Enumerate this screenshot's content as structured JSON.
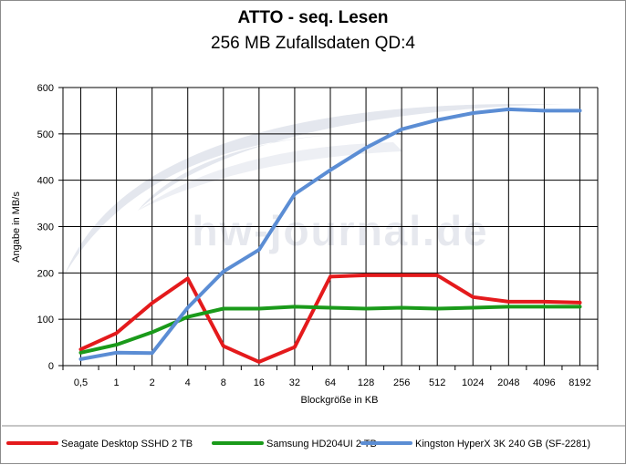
{
  "colors": {
    "series_red": "#e41a1c",
    "series_green": "#1a9a1a",
    "series_blue": "#5b8dd4",
    "grid": "#000000",
    "watermark": "#e4e7ee"
  },
  "watermark": {
    "text": "hw-journal.de"
  },
  "chart_data": {
    "type": "line",
    "title": "ATTO - seq. Lesen",
    "subtitle": "256 MB Zufallsdaten QD:4",
    "xlabel": "Blockgröße in KB",
    "ylabel": "Angabe in MB/s",
    "categories": [
      "0,5",
      "1",
      "2",
      "4",
      "8",
      "16",
      "32",
      "64",
      "128",
      "256",
      "512",
      "1024",
      "2048",
      "4096",
      "8192"
    ],
    "ylim": [
      0,
      600
    ],
    "yticks": [
      "0",
      "100",
      "200",
      "300",
      "400",
      "500",
      "600"
    ],
    "grid": "horizontal and vertical",
    "legend_position": "bottom",
    "series": [
      {
        "name": "Seagate Desktop SSHD 2 TB",
        "values": [
          35,
          70,
          135,
          188,
          42,
          8,
          40,
          192,
          195,
          195,
          195,
          148,
          138,
          138,
          136
        ]
      },
      {
        "name": "Samsung HD204UI 2 TB",
        "values": [
          28,
          45,
          72,
          105,
          123,
          123,
          127,
          125,
          123,
          125,
          123,
          125,
          127,
          127,
          127
        ]
      },
      {
        "name": "Kingston HyperX 3K 240 GB (SF-2281)",
        "values": [
          14,
          28,
          27,
          125,
          203,
          250,
          370,
          422,
          470,
          510,
          530,
          545,
          553,
          550,
          550
        ]
      }
    ]
  }
}
